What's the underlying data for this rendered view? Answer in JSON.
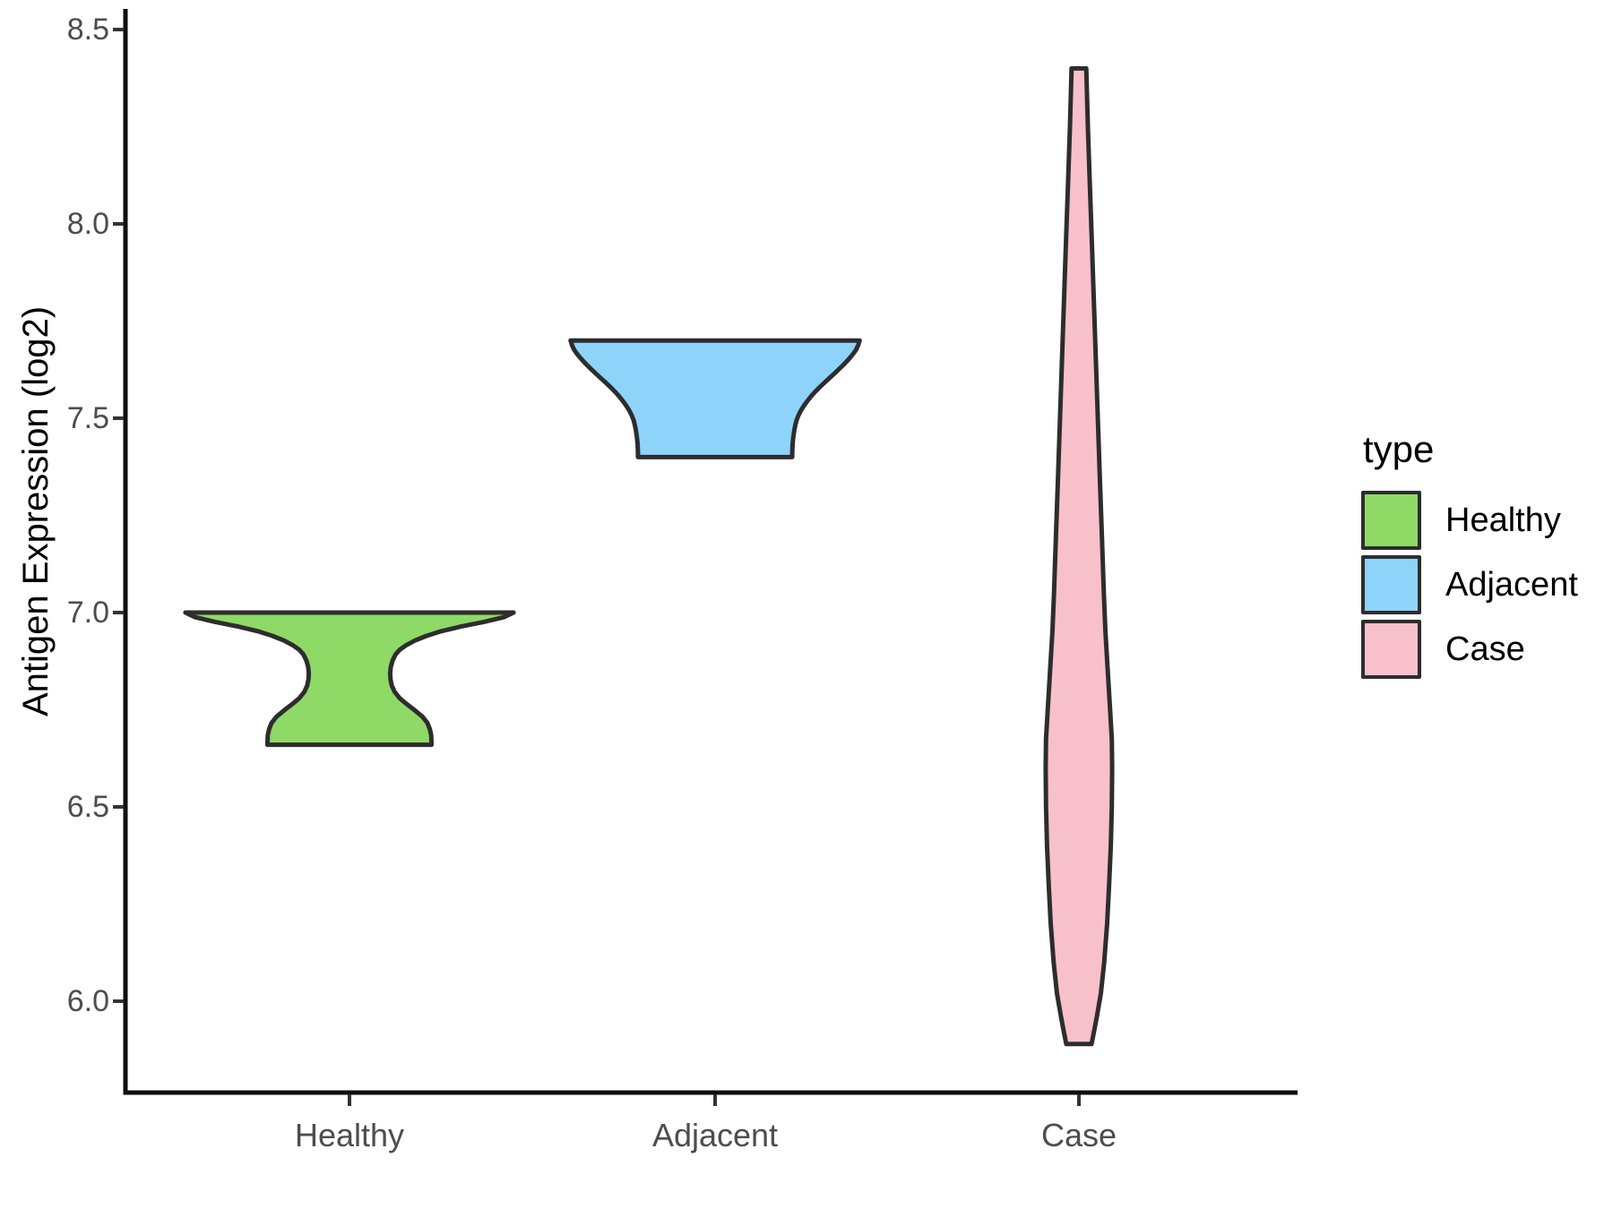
{
  "chart_data": {
    "type": "violin",
    "title": "",
    "xlabel": "",
    "ylabel": "Antigen Expression (log2)",
    "categories": [
      "Healthy",
      "Adjacent",
      "Case"
    ],
    "y_tick_labels": [
      "8.5",
      "8.0",
      "7.5",
      "7.0",
      "6.5",
      "6.0"
    ],
    "y_ticks": [
      8.5,
      8.0,
      7.5,
      7.0,
      6.5,
      6.0
    ],
    "y_axis_range_shown": [
      6.0,
      8.5
    ],
    "grid": "off",
    "outline_color": "#2D2D2D",
    "legend": {
      "title": "type",
      "position": "right",
      "entries": [
        {
          "label": "Healthy",
          "color": "#8FD966"
        },
        {
          "label": "Adjacent",
          "color": "#8ED3FA"
        },
        {
          "label": "Case",
          "color": "#F8C0CB"
        }
      ]
    },
    "series": [
      {
        "name": "Healthy",
        "fill": "#8FD966",
        "value_range": [
          6.66,
          7.0
        ],
        "widest_at": 7.0,
        "max_halfwidth_frac": 0.84,
        "profile": [
          [
            7.0,
            1.0
          ],
          [
            6.988,
            0.94
          ],
          [
            6.976,
            0.82
          ],
          [
            6.964,
            0.68
          ],
          [
            6.952,
            0.56
          ],
          [
            6.94,
            0.47
          ],
          [
            6.928,
            0.4
          ],
          [
            6.916,
            0.345
          ],
          [
            6.904,
            0.305
          ],
          [
            6.892,
            0.28
          ],
          [
            6.876,
            0.262
          ],
          [
            6.86,
            0.252
          ],
          [
            6.844,
            0.248
          ],
          [
            6.828,
            0.25
          ],
          [
            6.812,
            0.258
          ],
          [
            6.796,
            0.275
          ],
          [
            6.78,
            0.305
          ],
          [
            6.764,
            0.35
          ],
          [
            6.748,
            0.4
          ],
          [
            6.732,
            0.445
          ],
          [
            6.716,
            0.475
          ],
          [
            6.7,
            0.49
          ],
          [
            6.684,
            0.498
          ],
          [
            6.66,
            0.5
          ]
        ]
      },
      {
        "name": "Adjacent",
        "fill": "#8ED3FA",
        "value_range": [
          7.4,
          7.7
        ],
        "widest_at": 7.7,
        "max_halfwidth_frac": 0.74,
        "profile": [
          [
            7.7,
            1.0
          ],
          [
            7.688,
            0.99
          ],
          [
            7.676,
            0.975
          ],
          [
            7.664,
            0.952
          ],
          [
            7.652,
            0.925
          ],
          [
            7.64,
            0.895
          ],
          [
            7.628,
            0.862
          ],
          [
            7.616,
            0.828
          ],
          [
            7.604,
            0.793
          ],
          [
            7.592,
            0.758
          ],
          [
            7.58,
            0.724
          ],
          [
            7.568,
            0.692
          ],
          [
            7.556,
            0.663
          ],
          [
            7.544,
            0.637
          ],
          [
            7.532,
            0.614
          ],
          [
            7.52,
            0.594
          ],
          [
            7.508,
            0.578
          ],
          [
            7.496,
            0.565
          ],
          [
            7.484,
            0.556
          ],
          [
            7.472,
            0.549
          ],
          [
            7.46,
            0.544
          ],
          [
            7.448,
            0.54
          ],
          [
            7.436,
            0.537
          ],
          [
            7.424,
            0.535
          ],
          [
            7.412,
            0.534
          ],
          [
            7.4,
            0.534
          ]
        ]
      },
      {
        "name": "Case",
        "fill": "#F8C0CB",
        "value_range": [
          5.89,
          8.4
        ],
        "widest_at": 6.6,
        "max_halfwidth_frac": 0.17,
        "profile": [
          [
            8.4,
            0.22
          ],
          [
            8.25,
            0.27
          ],
          [
            8.1,
            0.33
          ],
          [
            7.95,
            0.39
          ],
          [
            7.8,
            0.45
          ],
          [
            7.65,
            0.51
          ],
          [
            7.5,
            0.57
          ],
          [
            7.35,
            0.63
          ],
          [
            7.2,
            0.69
          ],
          [
            7.05,
            0.75
          ],
          [
            6.95,
            0.8
          ],
          [
            6.85,
            0.87
          ],
          [
            6.75,
            0.94
          ],
          [
            6.675,
            0.99
          ],
          [
            6.6,
            1.0
          ],
          [
            6.5,
            0.99
          ],
          [
            6.4,
            0.96
          ],
          [
            6.3,
            0.91
          ],
          [
            6.2,
            0.85
          ],
          [
            6.1,
            0.76
          ],
          [
            6.02,
            0.66
          ],
          [
            5.96,
            0.54
          ],
          [
            5.92,
            0.45
          ],
          [
            5.89,
            0.38
          ]
        ]
      }
    ]
  }
}
